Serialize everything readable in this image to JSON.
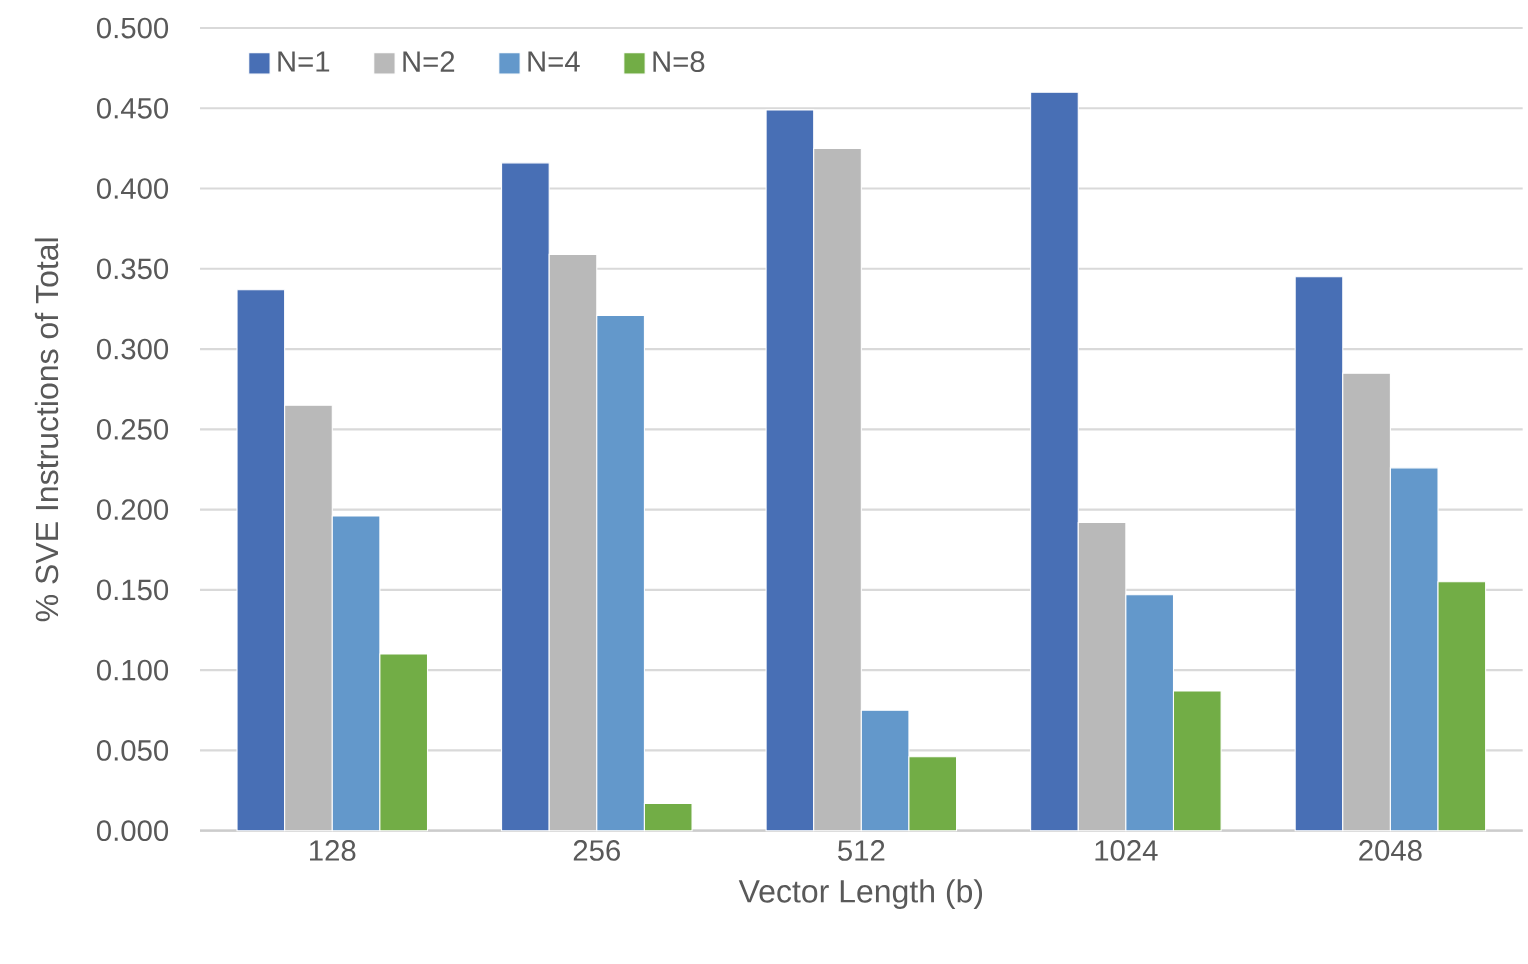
{
  "chart_data": {
    "type": "bar",
    "xlabel": "Vector Length (b)",
    "ylabel": "% SVE Instructions of Total",
    "categories": [
      "128",
      "256",
      "512",
      "1024",
      "2048"
    ],
    "series": [
      {
        "name": "N=1",
        "color": "#486fb5",
        "values": [
          0.337,
          0.416,
          0.449,
          0.46,
          0.345
        ]
      },
      {
        "name": "N=2",
        "color": "#b9b9b9",
        "values": [
          0.265,
          0.359,
          0.425,
          0.192,
          0.285
        ]
      },
      {
        "name": "N=4",
        "color": "#6398cb",
        "values": [
          0.196,
          0.321,
          0.075,
          0.147,
          0.226
        ]
      },
      {
        "name": "N=8",
        "color": "#72ad46",
        "values": [
          0.11,
          0.017,
          0.046,
          0.087,
          0.155
        ]
      }
    ],
    "ylim": [
      0,
      0.5
    ],
    "yticks": [
      {
        "value": 0,
        "label": "0.000"
      },
      {
        "value": 0.05,
        "label": "0.050"
      },
      {
        "value": 0.1,
        "label": "0.100"
      },
      {
        "value": 0.15,
        "label": "0.150"
      },
      {
        "value": 0.2,
        "label": "0.200"
      },
      {
        "value": 0.25,
        "label": "0.250"
      },
      {
        "value": 0.3,
        "label": "0.300"
      },
      {
        "value": 0.35,
        "label": "0.350"
      },
      {
        "value": 0.4,
        "label": "0.400"
      },
      {
        "value": 0.45,
        "label": "0.450"
      },
      {
        "value": 0.5,
        "label": "0.500"
      }
    ],
    "grid": "y",
    "legend": "top left"
  }
}
